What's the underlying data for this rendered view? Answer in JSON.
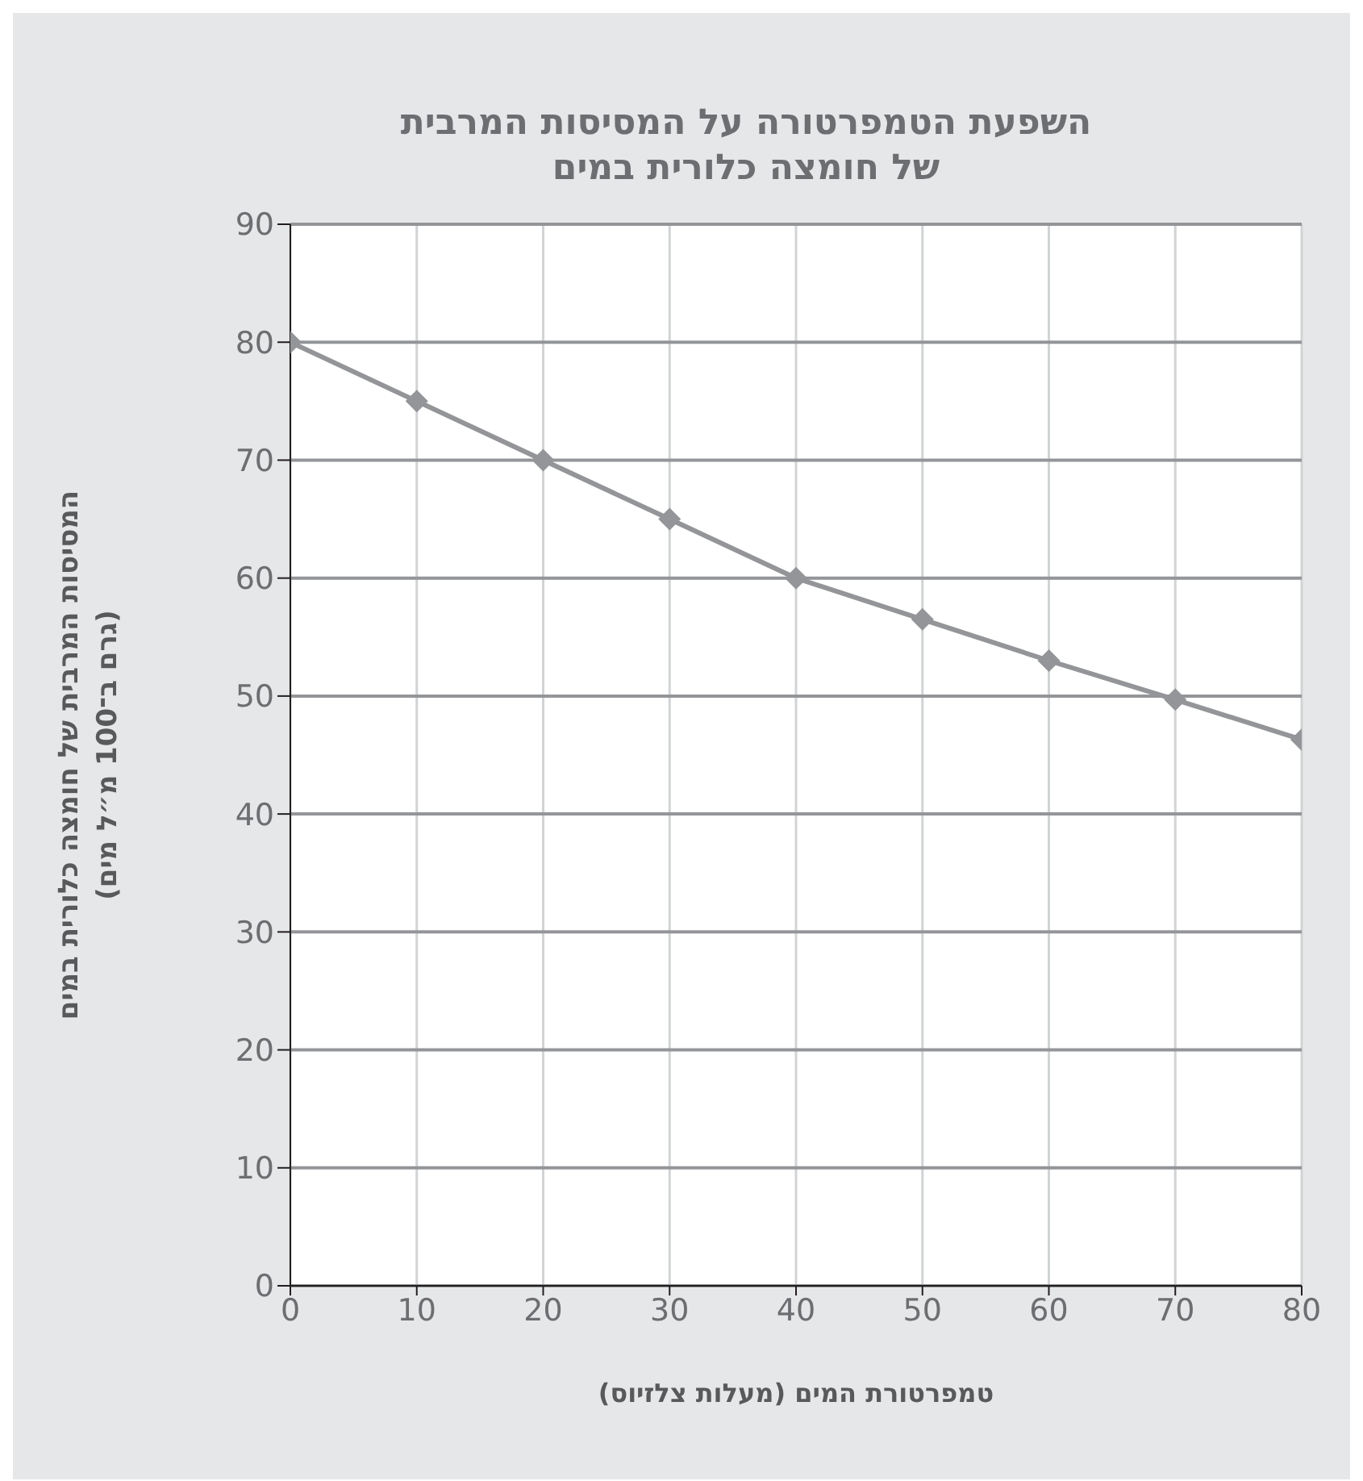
{
  "chart_data": {
    "type": "line",
    "title": "השפעת הטמפרטורה על המסיסות המרבית\nשל חומצה כלורית במים",
    "xlabel": "טמפרטורת המים (מעלות צלזיוס)",
    "ylabel": "המסיסות המרבית של חומצה כלורית במים\n(גרם ב־100 מ״ל מים)",
    "x": [
      0,
      10,
      20,
      30,
      40,
      50,
      60,
      70,
      80
    ],
    "series": [
      {
        "color": "#939598",
        "values": [
          80,
          75,
          70,
          65,
          60,
          56.5,
          53,
          49.7,
          46.3
        ]
      }
    ],
    "xlim": [
      0,
      80
    ],
    "xticks": [
      0,
      10,
      20,
      30,
      40,
      50,
      60,
      70,
      80
    ],
    "ylim": [
      0,
      90
    ],
    "yticks": [
      0,
      10,
      20,
      30,
      40,
      50,
      60,
      70,
      80,
      90
    ],
    "grid": true,
    "legend": false,
    "marker": "diamond",
    "line_style": "solid"
  }
}
